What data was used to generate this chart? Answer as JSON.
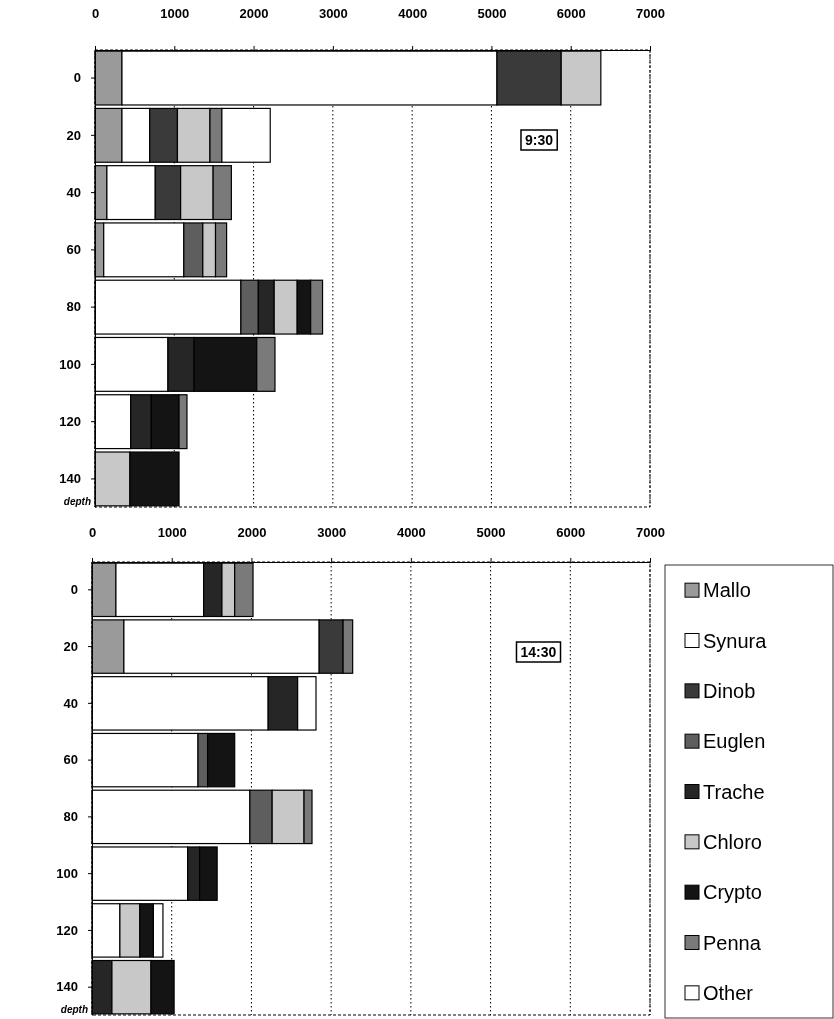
{
  "chart_data": [
    {
      "type": "bar",
      "orientation": "horizontal",
      "stacked": true,
      "ylabel": "depth",
      "annotations": [
        "9:30"
      ],
      "categories": [
        "0",
        "20",
        "40",
        "60",
        "80",
        "100",
        "120",
        "140"
      ],
      "xlim": [
        0,
        7000
      ],
      "xticks": [
        0,
        1000,
        2000,
        3000,
        4000,
        5000,
        6000,
        7000
      ],
      "grid": "x",
      "series": [
        {
          "color": "#9a9a9a",
          "values": [
            340,
            340,
            150,
            110,
            null,
            null,
            null,
            null
          ]
        },
        {
          "color": "#ffffff",
          "values": [
            4730,
            350,
            610,
            1010,
            1840,
            920,
            450,
            null
          ]
        },
        {
          "color": "#3a3a3a",
          "values": [
            810,
            350,
            320,
            null,
            null,
            null,
            null,
            null
          ]
        },
        {
          "color": "#5e5e5e",
          "values": [
            null,
            null,
            null,
            240,
            220,
            null,
            null,
            null
          ]
        },
        {
          "color": "#262626",
          "values": [
            null,
            null,
            null,
            null,
            200,
            330,
            260,
            null
          ]
        },
        {
          "color": "#c8c8c8",
          "values": [
            500,
            410,
            410,
            160,
            290,
            null,
            null,
            440
          ]
        },
        {
          "color": "#141414",
          "values": [
            null,
            null,
            null,
            null,
            170,
            790,
            350,
            620
          ]
        },
        {
          "color": "#7a7a7a",
          "values": [
            null,
            150,
            230,
            140,
            150,
            230,
            100,
            null
          ]
        },
        {
          "color": "#ffffff",
          "values": [
            null,
            610,
            null,
            null,
            null,
            null,
            null,
            null
          ]
        }
      ]
    },
    {
      "type": "bar",
      "orientation": "horizontal",
      "stacked": true,
      "ylabel": "depth",
      "annotations": [
        "14:30"
      ],
      "categories": [
        "0",
        "20",
        "40",
        "60",
        "80",
        "100",
        "120",
        "140"
      ],
      "xlim": [
        0,
        7000
      ],
      "xticks": [
        0,
        1000,
        2000,
        3000,
        4000,
        5000,
        6000,
        7000
      ],
      "grid": "x",
      "legend": "right",
      "series": [
        {
          "name": "Mallo",
          "color": "#9a9a9a",
          "values": [
            300,
            400,
            null,
            null,
            null,
            null,
            null,
            null
          ]
        },
        {
          "name": "Synura",
          "color": "#ffffff",
          "values": [
            1100,
            2450,
            2210,
            1330,
            1980,
            1200,
            350,
            null
          ]
        },
        {
          "name": "Dinob",
          "color": "#3a3a3a",
          "values": [
            null,
            300,
            null,
            null,
            null,
            null,
            null,
            null
          ]
        },
        {
          "name": "Euglen",
          "color": "#5e5e5e",
          "values": [
            null,
            null,
            null,
            120,
            280,
            null,
            null,
            null
          ]
        },
        {
          "name": "Trache",
          "color": "#262626",
          "values": [
            230,
            null,
            370,
            null,
            null,
            150,
            null,
            250
          ]
        },
        {
          "name": "Chloro",
          "color": "#c8c8c8",
          "values": [
            160,
            null,
            null,
            null,
            400,
            null,
            250,
            490
          ]
        },
        {
          "name": "Crypto",
          "color": "#141414",
          "values": [
            null,
            null,
            null,
            340,
            null,
            220,
            170,
            290
          ]
        },
        {
          "name": "Penna",
          "color": "#7a7a7a",
          "values": [
            230,
            120,
            null,
            null,
            100,
            null,
            null,
            null
          ]
        },
        {
          "name": "Other",
          "color": "#ffffff",
          "values": [
            null,
            null,
            230,
            null,
            null,
            null,
            120,
            null
          ]
        }
      ]
    }
  ]
}
